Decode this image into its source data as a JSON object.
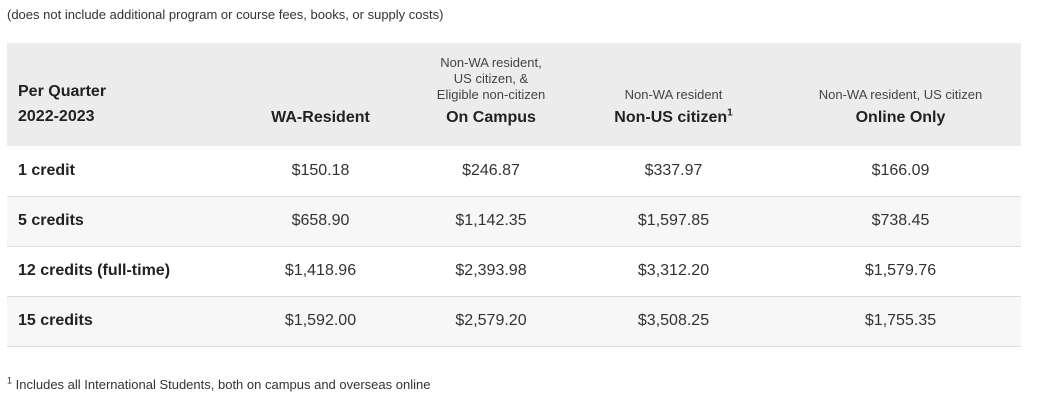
{
  "note": "(does not include additional program or course fees, books, or supply costs)",
  "table": {
    "headers": [
      {
        "line1": "Per Quarter",
        "line2": "2022-2023"
      },
      {
        "sub": [],
        "main": "WA-Resident",
        "sup": ""
      },
      {
        "sub": [
          "Non-WA resident,",
          "US citizen, &",
          "Eligible non-citizen"
        ],
        "main": "On Campus",
        "sup": ""
      },
      {
        "sub": [
          "Non-WA resident"
        ],
        "main": "Non-US citizen",
        "sup": "1"
      },
      {
        "sub": [
          "Non-WA resident, US citizen"
        ],
        "main": "Online Only",
        "sup": ""
      }
    ],
    "rows": [
      {
        "label": "1 credit",
        "values": [
          "$150.18",
          "$246.87",
          "$337.97",
          "$166.09"
        ]
      },
      {
        "label": "5 credits",
        "values": [
          "$658.90",
          "$1,142.35",
          "$1,597.85",
          "$738.45"
        ]
      },
      {
        "label": "12 credits (full-time)",
        "values": [
          "$1,418.96",
          "$2,393.98",
          "$3,312.20",
          "$1,579.76"
        ]
      },
      {
        "label": "15 credits",
        "values": [
          "$1,592.00",
          "$2,579.20",
          "$3,508.25",
          "$1,755.35"
        ]
      }
    ]
  },
  "footnote": {
    "marker": "1",
    "text": " Includes all International Students, both on campus and overseas online"
  }
}
